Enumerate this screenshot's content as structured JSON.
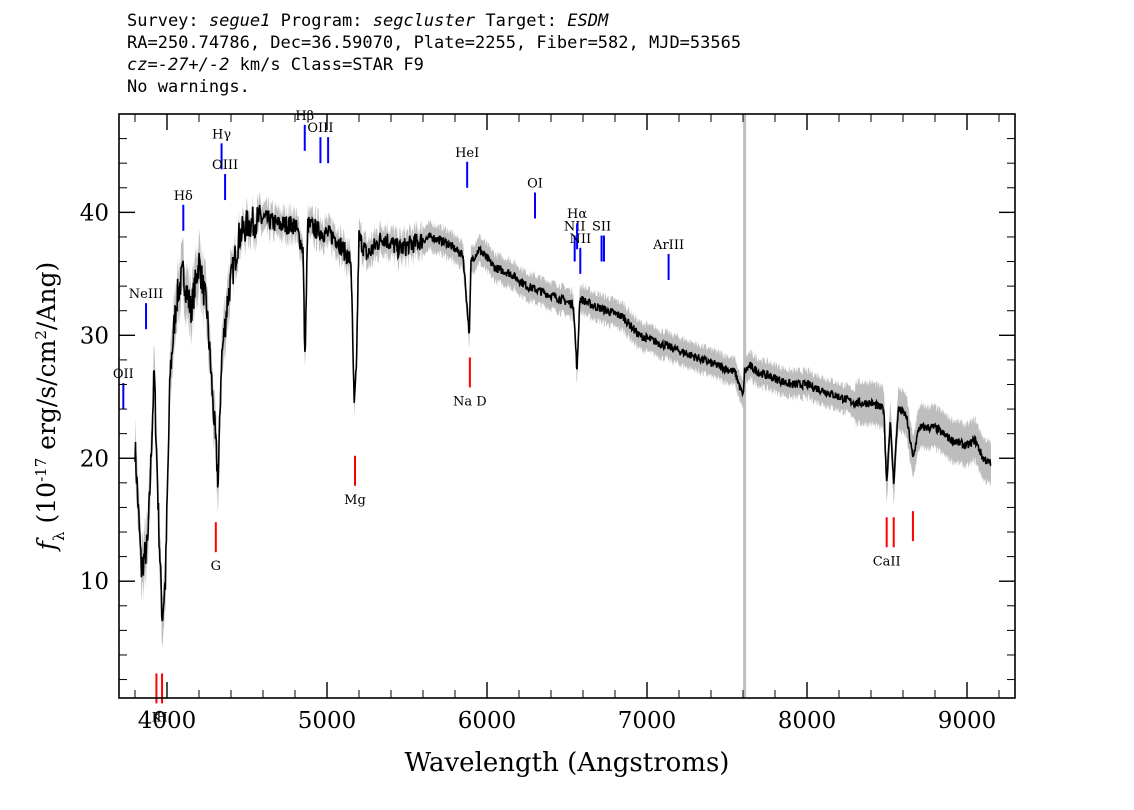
{
  "header": {
    "survey_label": "Survey:",
    "survey": "segue1",
    "program_label": "Program:",
    "program": "segcluster",
    "target_label": "Target:",
    "target": "ESDM",
    "line2": "RA=250.74786, Dec=36.59070, Plate=2255, Fiber=582, MJD=53565",
    "cz_label": "cz=",
    "cz_value": "-27+/-2",
    "cz_rest": " km/s Class=STAR F9",
    "line4": "No warnings."
  },
  "chart_data": {
    "type": "line",
    "xlabel": "Wavelength (Angstroms)",
    "ylabel": "f_λ (10^-17 erg/s/cm^2/Ang)",
    "xlim": [
      3700,
      9300
    ],
    "ylim": [
      0.5,
      48
    ],
    "xticks": [
      4000,
      5000,
      6000,
      7000,
      8000,
      9000
    ],
    "yticks": [
      10,
      20,
      30,
      40
    ],
    "vertical_marker_x": 7610,
    "colors": {
      "spectrum": "#000000",
      "error_band": "#bdbdbd",
      "emission": "#0000ff",
      "absorption": "#ff0000",
      "marker": "#bfbfbf"
    },
    "series": [
      {
        "x": [
          3800,
          3840,
          3880,
          3920,
          3950,
          3970,
          3990,
          4020,
          4060,
          4100,
          4150,
          4200,
          4250,
          4300,
          4320,
          4340,
          4380,
          4450,
          4500,
          4600,
          4700,
          4800,
          4850,
          4862,
          4880,
          4950,
          5050,
          5150,
          5170,
          5183,
          5200,
          5250,
          5350,
          5450,
          5550,
          5650,
          5750,
          5850,
          5890,
          5900,
          5950,
          6050,
          6150,
          6250,
          6350,
          6450,
          6540,
          6563,
          6580,
          6650,
          6750,
          6850,
          6950,
          7050,
          7150,
          7250,
          7350,
          7450,
          7550,
          7600,
          7610,
          7640,
          7700,
          7800,
          7900,
          8000,
          8100,
          8200,
          8300,
          8400,
          8480,
          8498,
          8520,
          8542,
          8570,
          8620,
          8662,
          8700,
          8800,
          8900,
          9000,
          9050,
          9100,
          9150
        ],
        "y": [
          21,
          11,
          13,
          27,
          14,
          7,
          10,
          27,
          33,
          35,
          32,
          36,
          32,
          22,
          18,
          28,
          33,
          38,
          39,
          39.5,
          39,
          39,
          37,
          28,
          39,
          38.5,
          38,
          36,
          24,
          27,
          38,
          36.5,
          38,
          37,
          37.5,
          38,
          37.5,
          36.5,
          30,
          36,
          37,
          35.5,
          35,
          34,
          33.5,
          33,
          32.5,
          27,
          33,
          32.5,
          32,
          31.5,
          30,
          29.5,
          29,
          28.5,
          28,
          27.5,
          27,
          25,
          27,
          27.5,
          27,
          26.5,
          26,
          26,
          25.5,
          25,
          24.5,
          24.5,
          24,
          18,
          23,
          18,
          24,
          23.5,
          20,
          22.5,
          22.5,
          21.5,
          21,
          21.5,
          20,
          19.5
        ]
      }
    ],
    "emission_lines": [
      {
        "label": "Hδ",
        "x": 4102,
        "y": 38.5
      },
      {
        "label": "Hγ",
        "x": 4341,
        "y": 43.5
      },
      {
        "label": "OIII",
        "x": 4363,
        "y": 41
      },
      {
        "label": "Hβ",
        "x": 4861,
        "y": 45
      },
      {
        "label": "OIII",
        "x": 4959,
        "y": 44
      },
      {
        "label": "",
        "x": 5007,
        "y": 44
      },
      {
        "label": "HeI",
        "x": 5876,
        "y": 42
      },
      {
        "label": "OI",
        "x": 6300,
        "y": 39.5
      },
      {
        "label": "NII",
        "x": 6548,
        "y": 36
      },
      {
        "label": "Hα",
        "x": 6563,
        "y": 37
      },
      {
        "label": "NII",
        "x": 6583,
        "y": 35
      },
      {
        "label": "SII",
        "x": 6716,
        "y": 36
      },
      {
        "label": "",
        "x": 6731,
        "y": 36
      },
      {
        "label": "ArIII",
        "x": 7135,
        "y": 34.5
      },
      {
        "label": "NeIII",
        "x": 3869,
        "y": 30.5
      },
      {
        "label": "OII",
        "x": 3727,
        "y": 24
      }
    ],
    "absorption_lines": [
      {
        "label": "K",
        "x": 3934,
        "y": 2.5
      },
      {
        "label": "H",
        "x": 3969,
        "y": 2.5
      },
      {
        "label": "G",
        "x": 4305,
        "y": 14.8
      },
      {
        "label": "Mg",
        "x": 5175,
        "y": 20.2
      },
      {
        "label": "Na D",
        "x": 5893,
        "y": 28.2
      },
      {
        "label": "CaII",
        "x": 8498,
        "y": 15.2
      },
      {
        "label": "",
        "x": 8542,
        "y": 15.2
      },
      {
        "label": "",
        "x": 8662,
        "y": 15.7
      }
    ]
  }
}
